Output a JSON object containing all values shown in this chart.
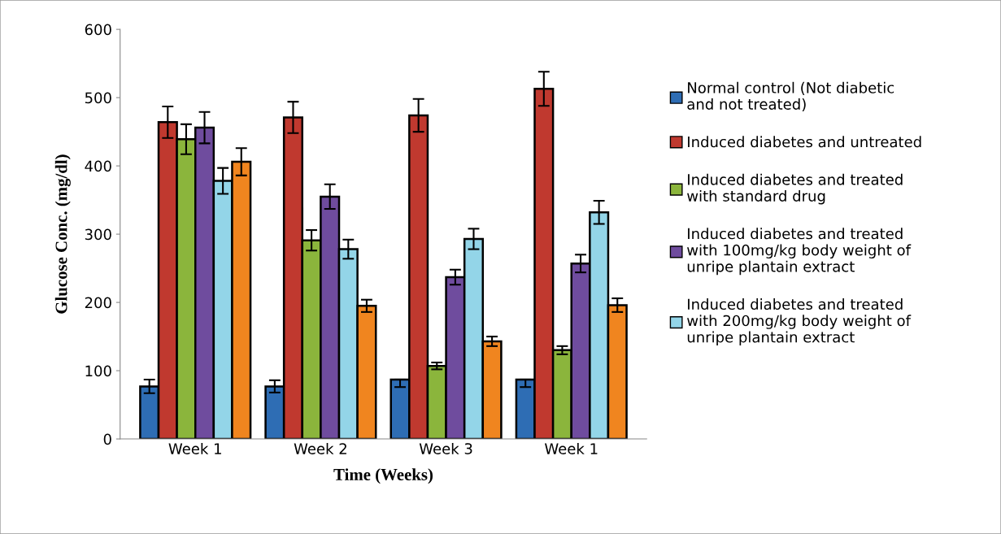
{
  "chart_data": {
    "type": "bar",
    "xlabel": "Time (Weeks)",
    "ylabel": "Glucose Conc. (mg/dl)",
    "categories": [
      "Week 1",
      "Week 2",
      "Week 3",
      "Week 1"
    ],
    "ylim": [
      0,
      600
    ],
    "yticks": [
      0,
      100,
      200,
      300,
      400,
      500,
      600
    ],
    "grid": false,
    "legend": "right",
    "series": [
      {
        "name": "Normal control (Not diabetic and not treated)",
        "color": "#2e6db4",
        "values": [
          77,
          77,
          87,
          87
        ],
        "errors": [
          10,
          9,
          [
            76,
            87
          ],
          [
            76,
            87
          ]
        ]
      },
      {
        "name": "Induced diabetes and untreated",
        "color": "#c0392f",
        "values": [
          464,
          471,
          474,
          513
        ],
        "errors": [
          23,
          23,
          24,
          25
        ]
      },
      {
        "name": "Induced diabetes and treated with standard drug",
        "color": "#8bb53c",
        "values": [
          439,
          291,
          107,
          130
        ],
        "errors": [
          22,
          15,
          5,
          6
        ]
      },
      {
        "name": "Induced diabetes and treated with 100mg/kg body weight of unripe plantain extract",
        "color": "#6f4c9e",
        "values": [
          456,
          355,
          237,
          257
        ],
        "errors": [
          23,
          18,
          11,
          13
        ]
      },
      {
        "name": "Induced diabetes and treated with 200mg/kg body weight of unripe plantain extract",
        "color": "#93d5e8",
        "values": [
          378,
          278,
          293,
          332
        ],
        "errors": [
          19,
          14,
          15,
          17
        ]
      },
      {
        "color": "#f0851f",
        "values": [
          406,
          195,
          143,
          196
        ],
        "errors": [
          20,
          9,
          7,
          10
        ]
      }
    ]
  }
}
